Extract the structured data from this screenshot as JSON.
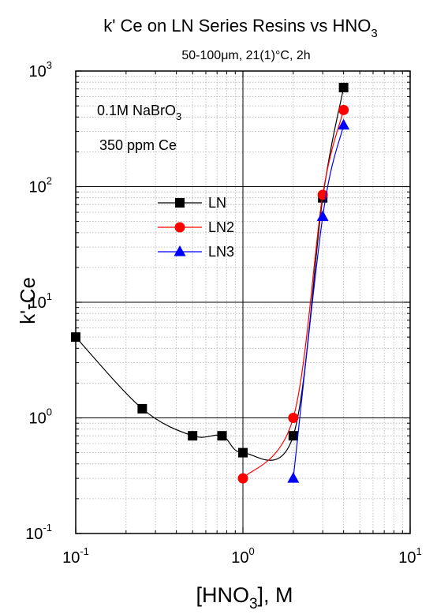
{
  "chart_data": {
    "type": "line",
    "title": "k' Ce on LN Series Resins vs HNO",
    "title_sub": "3",
    "subtitle": "50-100μm, 21(1)°C, 2h",
    "ylabel": "k'-Ce",
    "xlabel_pre": "[HNO",
    "xlabel_sub": "3",
    "xlabel_post": "], M",
    "x_scale": "log",
    "y_scale": "log",
    "xlim": [
      0.1,
      10
    ],
    "ylim": [
      0.1,
      1000
    ],
    "grid": true,
    "legend_position": "upper-left",
    "x_ticks": [
      {
        "base": "10",
        "exp": "-1"
      },
      {
        "base": "10",
        "exp": "0"
      },
      {
        "base": "10",
        "exp": "1"
      }
    ],
    "y_ticks": [
      {
        "base": "10",
        "exp": "-1"
      },
      {
        "base": "10",
        "exp": "0"
      },
      {
        "base": "10",
        "exp": "1"
      },
      {
        "base": "10",
        "exp": "2"
      },
      {
        "base": "10",
        "exp": "3"
      }
    ],
    "annotations": {
      "line1_pre": "0.1M NaBrO",
      "line1_sub": "3",
      "line2": "350 ppm Ce"
    },
    "series": [
      {
        "name": "LN",
        "color": "#000000",
        "marker": "square",
        "x": [
          0.1,
          0.25,
          0.5,
          0.75,
          1.0,
          2.0,
          3.0,
          4.0
        ],
        "y": [
          5.0,
          1.2,
          0.7,
          0.7,
          0.5,
          0.7,
          80,
          720
        ]
      },
      {
        "name": "LN2",
        "color": "#ff0000",
        "marker": "circle",
        "x": [
          1.0,
          2.0,
          3.0,
          4.0
        ],
        "y": [
          0.3,
          1.0,
          85,
          460
        ]
      },
      {
        "name": "LN3",
        "color": "#0000ff",
        "marker": "triangle",
        "x": [
          2.0,
          3.0,
          4.0
        ],
        "y": [
          0.3,
          55,
          340
        ]
      }
    ]
  }
}
